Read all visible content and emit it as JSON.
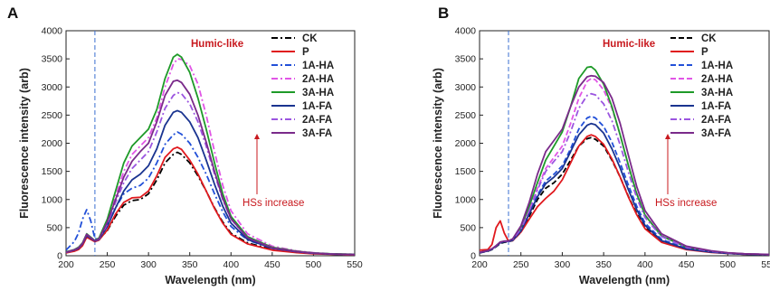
{
  "colors": {
    "CK": "#000000",
    "P": "#e0191e",
    "1A-HA": "#2250d8",
    "2A-HA": "#e155e6",
    "3A-HA": "#1e9a28",
    "1A-FA": "#1a3490",
    "2A-FA": "#9b55e0",
    "3A-FA": "#7a2a8a",
    "annotation": "#c8191e",
    "dashed_marker": "#3a6fd0"
  },
  "chart_data": [
    {
      "type": "line",
      "panel_label": "A",
      "xlabel": "Wavelength (nm)",
      "ylabel": "Fluorescence intensity (arb)",
      "xlim": [
        200,
        550
      ],
      "ylim": [
        0,
        4000
      ],
      "xticks": [
        "200",
        "250",
        "300",
        "350",
        "400",
        "450",
        "500",
        "550"
      ],
      "yticks": [
        "0",
        "500",
        "1000",
        "1500",
        "2000",
        "2500",
        "3000",
        "3500",
        "4000"
      ],
      "grid": false,
      "legend_position": "top-right",
      "vline_x": 235,
      "annotations": {
        "region_label": "Humic-like",
        "arrow_label": "HSs increase"
      },
      "x": [
        200,
        210,
        215,
        220,
        225,
        230,
        235,
        240,
        250,
        260,
        270,
        280,
        290,
        300,
        310,
        320,
        330,
        335,
        340,
        350,
        360,
        370,
        380,
        390,
        400,
        420,
        450,
        480,
        500,
        520,
        550
      ],
      "series": [
        {
          "name": "CK",
          "dash": "dashdot",
          "values": [
            60,
            90,
            120,
            200,
            350,
            300,
            260,
            290,
            450,
            700,
            900,
            980,
            1000,
            1100,
            1350,
            1650,
            1800,
            1840,
            1800,
            1650,
            1420,
            1150,
            850,
            600,
            400,
            230,
            110,
            60,
            40,
            30,
            20
          ]
        },
        {
          "name": "P",
          "dash": "solid",
          "values": [
            50,
            80,
            110,
            180,
            330,
            290,
            250,
            280,
            460,
            740,
            950,
            1030,
            1040,
            1150,
            1420,
            1750,
            1900,
            1930,
            1890,
            1700,
            1450,
            1150,
            840,
            580,
            380,
            210,
            100,
            55,
            35,
            25,
            15
          ]
        },
        {
          "name": "1A-HA",
          "dash": "dashdot",
          "values": [
            100,
            250,
            400,
            650,
            820,
            620,
            300,
            300,
            550,
            850,
            1100,
            1200,
            1250,
            1380,
            1650,
            1980,
            2150,
            2200,
            2160,
            2000,
            1750,
            1450,
            1100,
            780,
            520,
            280,
            130,
            70,
            45,
            30,
            20
          ]
        },
        {
          "name": "2A-HA",
          "dash": "dashdot",
          "values": [
            60,
            100,
            140,
            220,
            380,
            320,
            260,
            300,
            600,
            1050,
            1500,
            1800,
            1950,
            2100,
            2450,
            3000,
            3400,
            3500,
            3490,
            3380,
            3050,
            2500,
            1850,
            1250,
            800,
            390,
            170,
            85,
            55,
            35,
            25
          ]
        },
        {
          "name": "3A-HA",
          "dash": "solid",
          "values": [
            70,
            110,
            150,
            230,
            390,
            330,
            270,
            320,
            650,
            1150,
            1650,
            1950,
            2100,
            2250,
            2600,
            3150,
            3530,
            3580,
            3530,
            3260,
            2800,
            2250,
            1650,
            1100,
            700,
            340,
            150,
            80,
            50,
            35,
            25
          ]
        },
        {
          "name": "1A-FA",
          "dash": "solid",
          "values": [
            60,
            100,
            130,
            210,
            360,
            310,
            260,
            290,
            520,
            850,
            1150,
            1350,
            1450,
            1600,
            1900,
            2320,
            2550,
            2580,
            2550,
            2380,
            2100,
            1700,
            1270,
            880,
            580,
            290,
            130,
            70,
            45,
            30,
            20
          ]
        },
        {
          "name": "2A-FA",
          "dash": "dashdot",
          "values": [
            65,
            105,
            140,
            220,
            380,
            320,
            265,
            300,
            560,
            950,
            1300,
            1550,
            1700,
            1850,
            2200,
            2620,
            2850,
            2900,
            2880,
            2700,
            2380,
            1950,
            1450,
            1000,
            650,
            320,
            140,
            75,
            48,
            32,
            22
          ]
        },
        {
          "name": "3A-FA",
          "dash": "solid",
          "values": [
            65,
            105,
            140,
            220,
            380,
            320,
            265,
            305,
            600,
            1000,
            1400,
            1680,
            1850,
            2000,
            2380,
            2850,
            3100,
            3120,
            3080,
            2870,
            2500,
            2020,
            1500,
            1020,
            660,
            320,
            140,
            75,
            48,
            32,
            22
          ]
        }
      ]
    },
    {
      "type": "line",
      "panel_label": "B",
      "xlabel": "Wavelength (nm)",
      "ylabel": "Fluorescence intensity (arb)",
      "xlim": [
        200,
        550
      ],
      "ylim": [
        0,
        4000
      ],
      "xticks": [
        "200",
        "250",
        "300",
        "350",
        "400",
        "450",
        "500",
        "550"
      ],
      "yticks": [
        "0",
        "500",
        "1000",
        "1500",
        "2000",
        "2500",
        "3000",
        "3500",
        "4000"
      ],
      "grid": false,
      "legend_position": "top-right",
      "vline_x": 235,
      "annotations": {
        "region_label": "Humic-like",
        "arrow_label": "HSs increase"
      },
      "x": [
        200,
        210,
        215,
        220,
        225,
        230,
        235,
        240,
        250,
        260,
        270,
        280,
        290,
        300,
        310,
        320,
        330,
        335,
        340,
        350,
        360,
        370,
        380,
        390,
        400,
        420,
        450,
        480,
        500,
        520,
        550
      ],
      "series": [
        {
          "name": "CK",
          "dash": "dashed",
          "values": [
            50,
            80,
            110,
            160,
            220,
            240,
            250,
            270,
            420,
            700,
            1000,
            1200,
            1300,
            1450,
            1700,
            1950,
            2080,
            2100,
            2070,
            1950,
            1700,
            1400,
            1050,
            750,
            500,
            260,
            120,
            65,
            42,
            28,
            18
          ]
        },
        {
          "name": "P",
          "dash": "solid",
          "values": [
            100,
            110,
            200,
            500,
            620,
            400,
            260,
            270,
            420,
            650,
            870,
            1020,
            1150,
            1350,
            1650,
            1950,
            2120,
            2150,
            2120,
            1980,
            1720,
            1400,
            1040,
            730,
            480,
            240,
            110,
            60,
            40,
            27,
            18
          ]
        },
        {
          "name": "1A-HA",
          "dash": "dashed",
          "values": [
            55,
            85,
            115,
            170,
            230,
            250,
            255,
            280,
            450,
            760,
            1080,
            1330,
            1450,
            1600,
            1900,
            2250,
            2450,
            2480,
            2450,
            2300,
            2020,
            1650,
            1250,
            880,
            580,
            290,
            130,
            70,
            45,
            30,
            20
          ]
        },
        {
          "name": "2A-HA",
          "dash": "dashed",
          "values": [
            60,
            90,
            120,
            175,
            240,
            255,
            260,
            290,
            480,
            820,
            1200,
            1550,
            1750,
            1950,
            2350,
            2800,
            3100,
            3150,
            3130,
            2950,
            2620,
            2150,
            1600,
            1120,
            730,
            360,
            160,
            82,
            52,
            34,
            22
          ]
        },
        {
          "name": "3A-HA",
          "dash": "solid",
          "values": [
            60,
            90,
            120,
            175,
            240,
            255,
            265,
            295,
            500,
            880,
            1300,
            1700,
            1950,
            2200,
            2650,
            3150,
            3350,
            3360,
            3300,
            3050,
            2650,
            2150,
            1600,
            1100,
            720,
            350,
            155,
            80,
            50,
            33,
            22
          ]
        },
        {
          "name": "1A-FA",
          "dash": "solid",
          "values": [
            55,
            85,
            115,
            170,
            230,
            250,
            255,
            275,
            440,
            740,
            1050,
            1280,
            1400,
            1550,
            1850,
            2150,
            2320,
            2350,
            2330,
            2180,
            1900,
            1560,
            1170,
            820,
            540,
            270,
            120,
            65,
            42,
            28,
            19
          ]
        },
        {
          "name": "2A-FA",
          "dash": "dashdot",
          "values": [
            60,
            90,
            120,
            175,
            240,
            255,
            260,
            290,
            470,
            800,
            1170,
            1500,
            1680,
            1850,
            2200,
            2620,
            2850,
            2880,
            2860,
            2700,
            2400,
            1970,
            1480,
            1030,
            680,
            340,
            150,
            78,
            50,
            33,
            22
          ]
        },
        {
          "name": "3A-FA",
          "dash": "solid",
          "values": [
            60,
            92,
            125,
            180,
            245,
            260,
            265,
            300,
            530,
            950,
            1450,
            1850,
            2050,
            2250,
            2650,
            3000,
            3180,
            3200,
            3190,
            3080,
            2800,
            2350,
            1780,
            1230,
            800,
            390,
            170,
            88,
            55,
            36,
            24
          ]
        }
      ]
    }
  ]
}
